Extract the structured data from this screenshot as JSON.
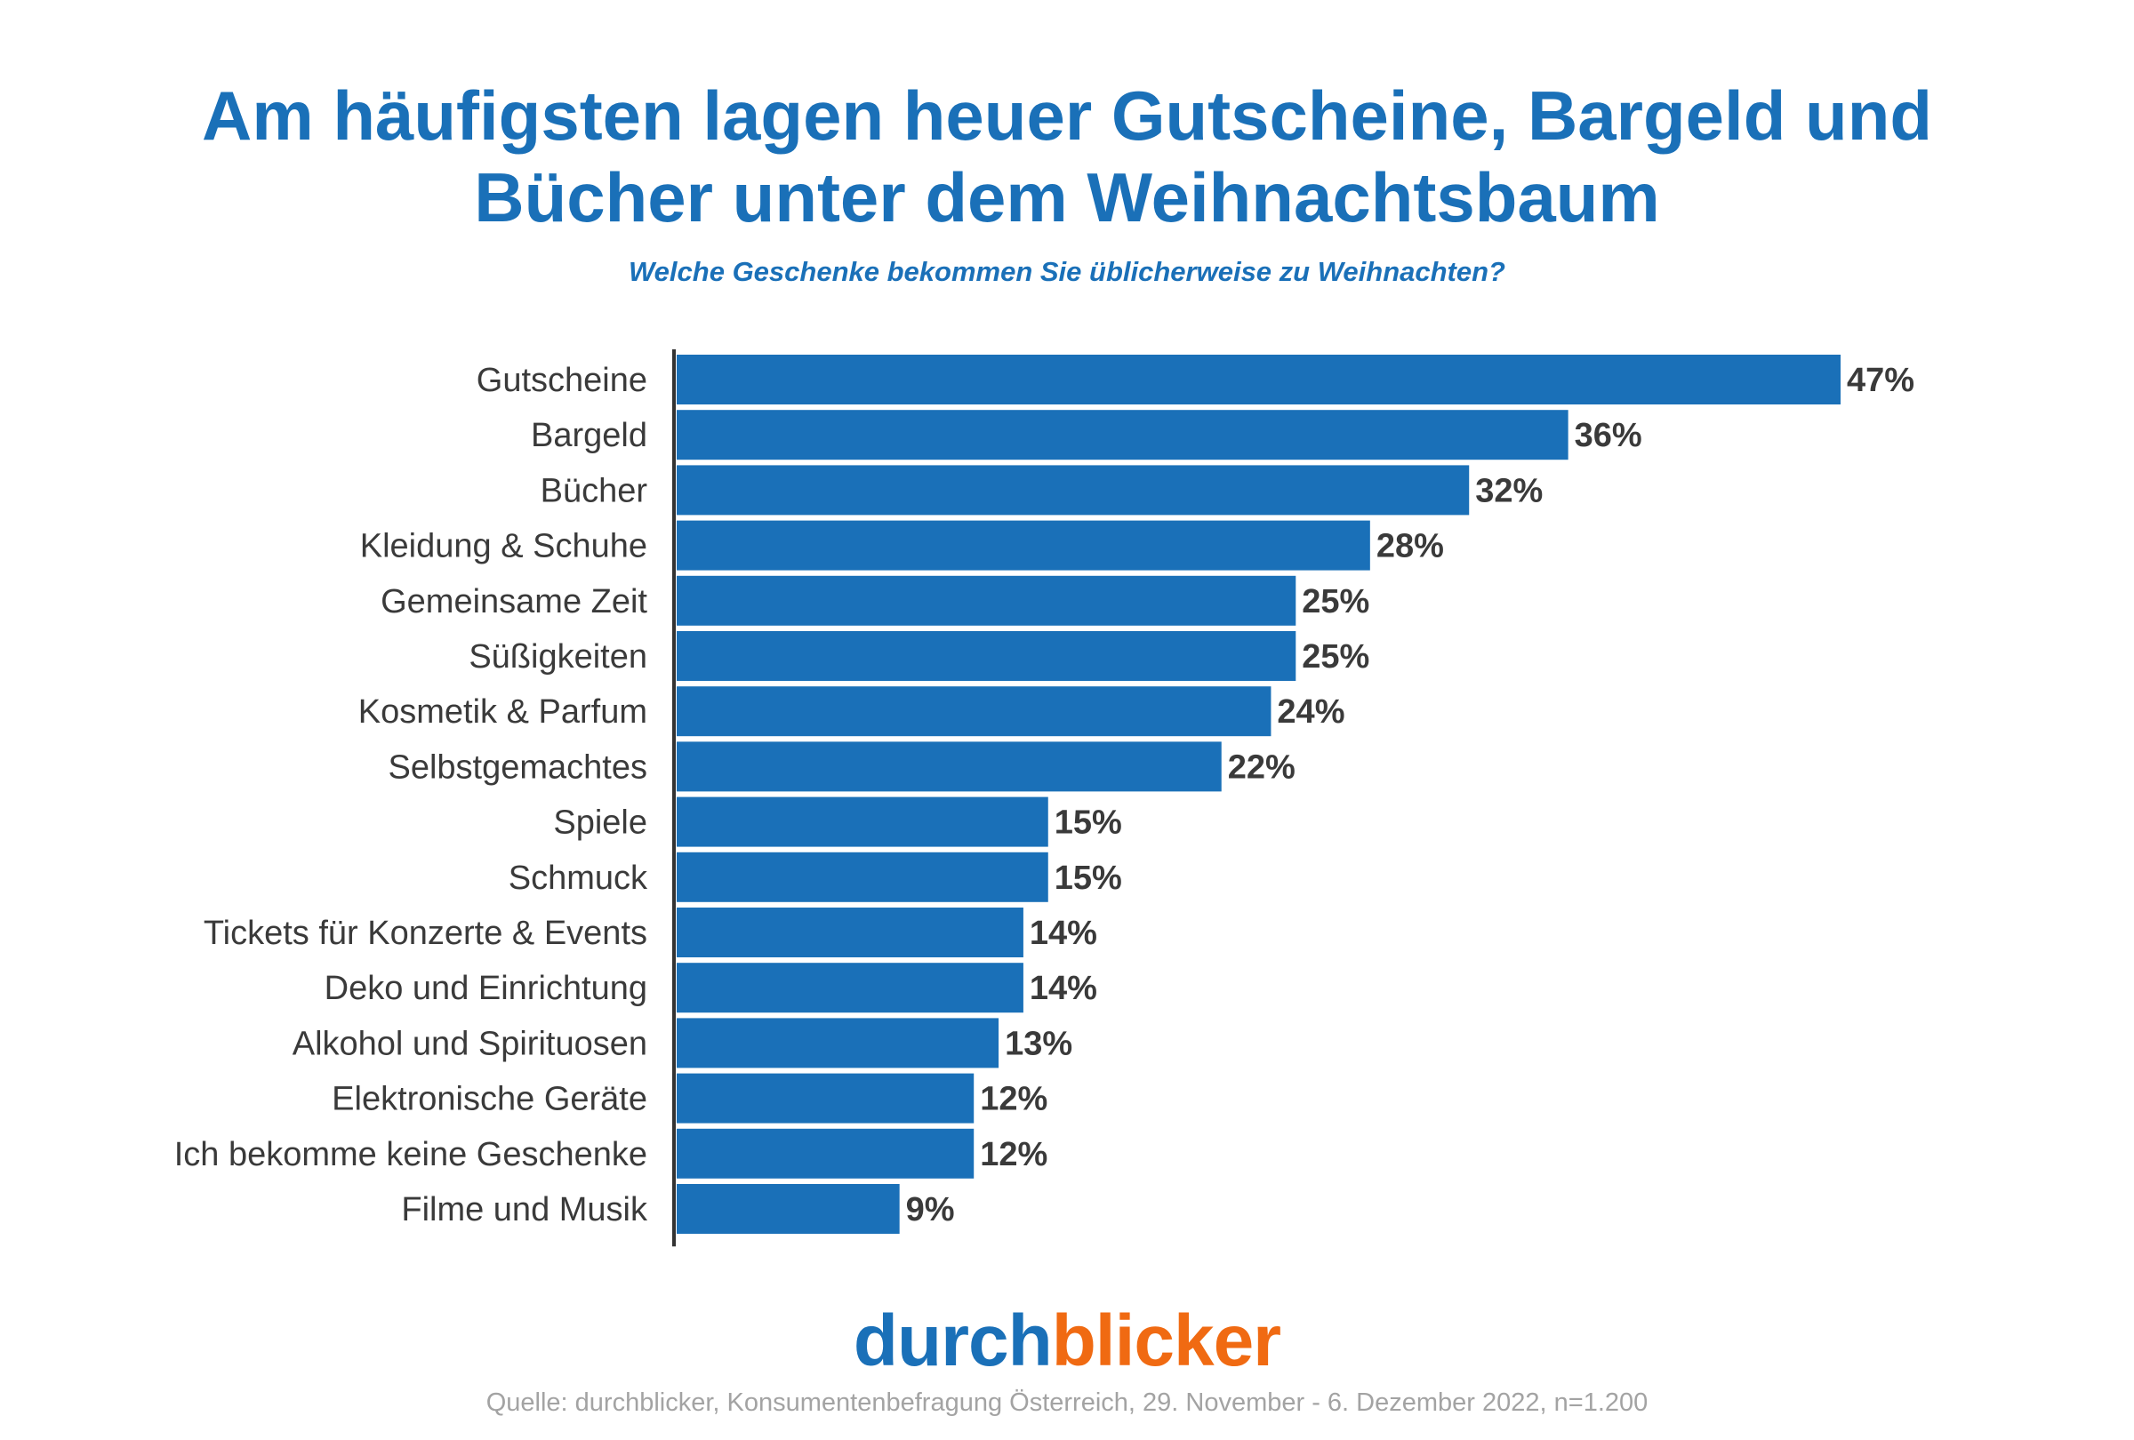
{
  "header": {
    "title_line1": "Am häufigsten lagen heuer Gutscheine, Bargeld und",
    "title_line2": "Bücher unter dem Weihnachtsbaum",
    "subtitle": "Welche Geschenke bekommen Sie üblicherweise zu Weihnachten?"
  },
  "logo": {
    "part1": "durch",
    "part2": "blicker"
  },
  "footer": {
    "source": "Quelle: durchblicker, Konsumentenbefragung Österreich,  29. November - 6. Dezember 2022, n=1.200"
  },
  "colors": {
    "bar": "#1a70b8",
    "title": "#1a70b8",
    "logo_blue": "#1a70b8",
    "logo_orange": "#f06a12",
    "text": "#3a3a3a",
    "source": "#a3a3a3"
  },
  "chart_data": {
    "type": "bar",
    "orientation": "horizontal",
    "categories": [
      "Gutscheine",
      "Bargeld",
      "Bücher",
      "Kleidung & Schuhe",
      "Gemeinsame Zeit",
      "Süßigkeiten",
      "Kosmetik & Parfum",
      "Selbstgemachtes",
      "Spiele",
      "Schmuck",
      "Tickets für Konzerte & Events",
      "Deko und Einrichtung",
      "Alkohol und Spirituosen",
      "Elektronische Geräte",
      "Ich bekomme keine Geschenke",
      "Filme und Musik"
    ],
    "values": [
      47,
      36,
      32,
      28,
      25,
      25,
      24,
      22,
      15,
      15,
      14,
      14,
      13,
      12,
      12,
      9
    ],
    "labels": [
      "47%",
      "36%",
      "32%",
      "28%",
      "25%",
      "25%",
      "24%",
      "22%",
      "15%",
      "15%",
      "14%",
      "14%",
      "13%",
      "12%",
      "12%",
      "9%"
    ],
    "value_unit": "%",
    "xlim": [
      0,
      47
    ],
    "grid": false,
    "legend": "none"
  }
}
